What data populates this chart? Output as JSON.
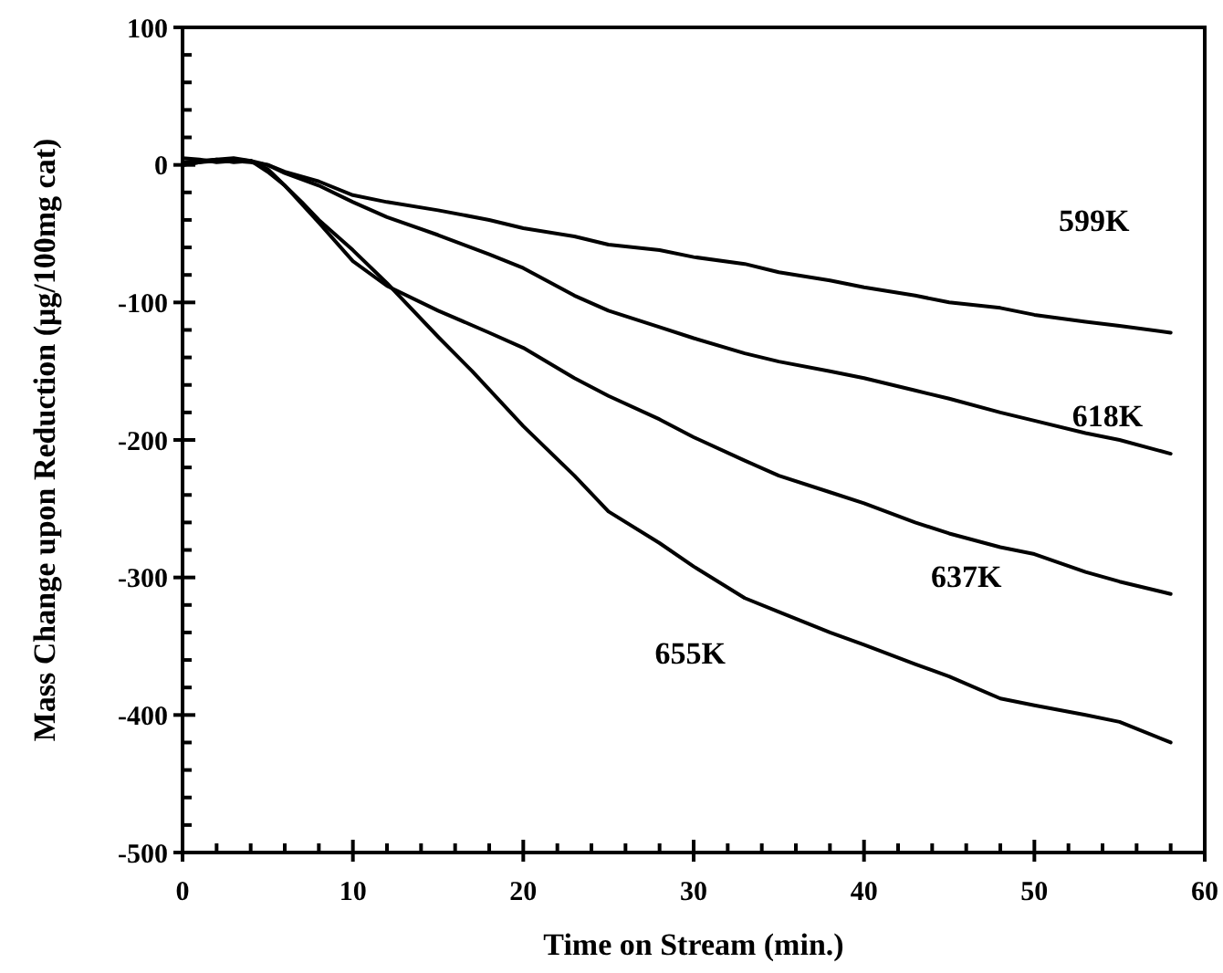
{
  "chart_data": {
    "type": "line",
    "xlabel": "Time on Stream (min.)",
    "ylabel": "Mass Change upon Reduction (μg/100mg cat)",
    "xlim": [
      0,
      60
    ],
    "ylim": [
      -500,
      100
    ],
    "xticks": [
      0,
      {
        "value": 2,
        "label": null
      },
      {
        "value": 4,
        "label": null
      },
      {
        "value": 6,
        "label": null
      },
      {
        "value": 8,
        "label": null
      },
      10,
      {
        "value": 12,
        "label": null
      },
      {
        "value": 14,
        "label": null
      },
      {
        "value": 16,
        "label": null
      },
      {
        "value": 18,
        "label": null
      },
      20,
      {
        "value": 22,
        "label": null
      },
      {
        "value": 24,
        "label": null
      },
      {
        "value": 26,
        "label": null
      },
      {
        "value": 28,
        "label": null
      },
      30,
      {
        "value": 32,
        "label": null
      },
      {
        "value": 34,
        "label": null
      },
      {
        "value": 36,
        "label": null
      },
      {
        "value": 38,
        "label": null
      },
      40,
      {
        "value": 42,
        "label": null
      },
      {
        "value": 44,
        "label": null
      },
      {
        "value": 46,
        "label": null
      },
      {
        "value": 48,
        "label": null
      },
      50,
      {
        "value": 52,
        "label": null
      },
      {
        "value": 54,
        "label": null
      },
      {
        "value": 56,
        "label": null
      },
      {
        "value": 58,
        "label": null
      },
      60
    ],
    "yticks": [
      -500,
      {
        "value": -480,
        "label": null
      },
      {
        "value": -460,
        "label": null
      },
      {
        "value": -440,
        "label": null
      },
      {
        "value": -420,
        "label": null
      },
      -400,
      {
        "value": -380,
        "label": null
      },
      {
        "value": -360,
        "label": null
      },
      {
        "value": -340,
        "label": null
      },
      {
        "value": -320,
        "label": null
      },
      -300,
      {
        "value": -280,
        "label": null
      },
      {
        "value": -260,
        "label": null
      },
      {
        "value": -240,
        "label": null
      },
      {
        "value": -220,
        "label": null
      },
      -200,
      {
        "value": -180,
        "label": null
      },
      {
        "value": -160,
        "label": null
      },
      {
        "value": -140,
        "label": null
      },
      {
        "value": -120,
        "label": null
      },
      -100,
      {
        "value": -80,
        "label": null
      },
      {
        "value": -60,
        "label": null
      },
      {
        "value": -40,
        "label": null
      },
      {
        "value": -20,
        "label": null
      },
      0,
      {
        "value": 20,
        "label": null
      },
      {
        "value": 40,
        "label": null
      },
      {
        "value": 60,
        "label": null
      },
      {
        "value": 80,
        "label": null
      },
      100
    ],
    "marker": "none",
    "line_style": "solid",
    "grid": false,
    "series": [
      {
        "name": "599K",
        "color": "#000000",
        "x": [
          0,
          1,
          2,
          3,
          4,
          5,
          6,
          8,
          10,
          12,
          15,
          18,
          20,
          23,
          25,
          28,
          30,
          33,
          35,
          38,
          40,
          43,
          45,
          48,
          50,
          53,
          55,
          58
        ],
        "values": [
          5,
          4,
          2,
          3,
          2,
          0,
          -5,
          -12,
          -22,
          -27,
          -33,
          -40,
          -46,
          -52,
          -58,
          -62,
          -67,
          -72,
          -78,
          -84,
          -89,
          -95,
          -100,
          -104,
          -109,
          -114,
          -117,
          -122
        ]
      },
      {
        "name": "618K",
        "color": "#000000",
        "x": [
          0,
          1,
          2,
          3,
          4,
          5,
          6,
          8,
          10,
          12,
          15,
          18,
          20,
          23,
          25,
          28,
          30,
          33,
          35,
          38,
          40,
          43,
          45,
          48,
          50,
          53,
          55,
          58
        ],
        "values": [
          0,
          2,
          3,
          4,
          3,
          0,
          -6,
          -15,
          -27,
          -38,
          -51,
          -65,
          -75,
          -95,
          -106,
          -118,
          -126,
          -137,
          -143,
          -150,
          -155,
          -164,
          -170,
          -180,
          -186,
          -195,
          -200,
          -210
        ]
      },
      {
        "name": "637K",
        "color": "#000000",
        "x": [
          0,
          1,
          2,
          3,
          4,
          5,
          6,
          8,
          10,
          12,
          15,
          18,
          20,
          23,
          25,
          28,
          30,
          33,
          35,
          38,
          40,
          43,
          45,
          48,
          50,
          53,
          55,
          58
        ],
        "values": [
          2,
          3,
          4,
          2,
          3,
          -3,
          -15,
          -42,
          -70,
          -88,
          -106,
          -122,
          -133,
          -155,
          -168,
          -185,
          -198,
          -215,
          -226,
          -238,
          -246,
          -260,
          -268,
          -278,
          -283,
          -296,
          -303,
          -312
        ]
      },
      {
        "name": "655K",
        "color": "#000000",
        "x": [
          0,
          1,
          2,
          3,
          4,
          5,
          6,
          7,
          8,
          10,
          12,
          15,
          17,
          20,
          23,
          25,
          28,
          30,
          33,
          35,
          38,
          40,
          43,
          45,
          48,
          50,
          53,
          55,
          58
        ],
        "values": [
          0,
          2,
          4,
          5,
          3,
          -5,
          -15,
          -27,
          -40,
          -62,
          -86,
          -125,
          -150,
          -190,
          -226,
          -252,
          -275,
          -292,
          -315,
          -325,
          -340,
          -349,
          -363,
          -372,
          -388,
          -393,
          -400,
          -405,
          -420
        ]
      }
    ]
  }
}
